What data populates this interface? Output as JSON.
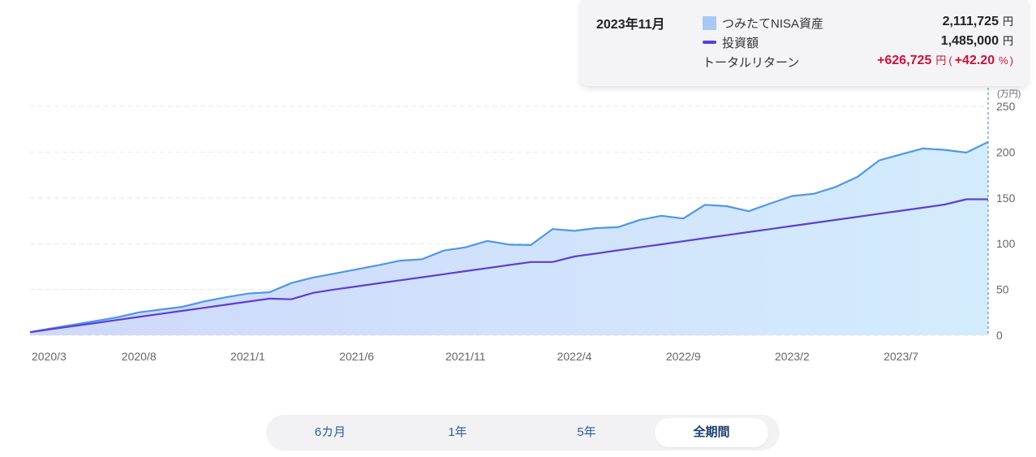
{
  "tooltip": {
    "date": "2023年11月",
    "asset_label": "つみたてNISA資産",
    "asset_value": "2,111,725",
    "invest_label": "投資額",
    "invest_value": "1,485,000",
    "return_label": "トータルリターン",
    "return_value": "+626,725",
    "return_pct": "+42.20",
    "yen": "円",
    "percent": "%",
    "paren_open": "("
  },
  "range_buttons": [
    {
      "label": "6カ月",
      "active": false
    },
    {
      "label": "1年",
      "active": false
    },
    {
      "label": "5年",
      "active": false
    },
    {
      "label": "全期間",
      "active": true
    }
  ],
  "colors": {
    "asset_line": "#4f97e6",
    "asset_fill_start": "#cfd8fb",
    "asset_fill_end": "#d3ecfd",
    "invest_line": "#5b3fd8",
    "return_red": "#d0103a",
    "crosshair": "#3a78c2"
  },
  "chart_data": {
    "type": "area",
    "y_unit": "(万円)",
    "ylim": [
      0,
      250
    ],
    "y_ticks": [
      0,
      50,
      100,
      150,
      200,
      250
    ],
    "x_tick_labels": [
      "2020/3",
      "2020/8",
      "2021/1",
      "2021/6",
      "2021/11",
      "2022/4",
      "2022/9",
      "2023/2",
      "2023/7"
    ],
    "x_tick_index": [
      0,
      5,
      10,
      15,
      20,
      25,
      30,
      35,
      40
    ],
    "x_months": [
      "2020/3",
      "2020/4",
      "2020/5",
      "2020/6",
      "2020/7",
      "2020/8",
      "2020/9",
      "2020/10",
      "2020/11",
      "2020/12",
      "2021/1",
      "2021/2",
      "2021/3",
      "2021/4",
      "2021/5",
      "2021/6",
      "2021/7",
      "2021/8",
      "2021/9",
      "2021/10",
      "2021/11",
      "2021/12",
      "2022/1",
      "2022/2",
      "2022/3",
      "2022/4",
      "2022/5",
      "2022/6",
      "2022/7",
      "2022/8",
      "2022/9",
      "2022/10",
      "2022/11",
      "2022/12",
      "2023/1",
      "2023/2",
      "2023/3",
      "2023/4",
      "2023/5",
      "2023/6",
      "2023/7",
      "2023/8",
      "2023/9",
      "2023/10",
      "2023/11"
    ],
    "grid": true,
    "series": [
      {
        "name": "つみたてNISA資産",
        "values": [
          3.5,
          7.5,
          11.5,
          15.5,
          19.5,
          25,
          28,
          31,
          37,
          41.5,
          45.5,
          47,
          57,
          63,
          67.5,
          72,
          76.5,
          81.5,
          83,
          92.5,
          96,
          103,
          99,
          98.5,
          116,
          114,
          117,
          118,
          126,
          130.5,
          127.5,
          142.5,
          141,
          135.5,
          144,
          152,
          154.5,
          162,
          173,
          191,
          197.5,
          204,
          202.5,
          199.5,
          211.2
        ]
      },
      {
        "name": "投資額",
        "values": [
          3.3,
          6.7,
          10,
          13.3,
          16.7,
          20,
          23.3,
          26.7,
          30,
          33.3,
          36.7,
          40,
          39.3,
          46.3,
          50,
          53.3,
          56.7,
          60,
          63.3,
          66.7,
          70,
          73.3,
          76.7,
          80,
          80,
          86,
          89.3,
          92.7,
          96,
          99.3,
          102.7,
          106,
          109.3,
          112.7,
          116,
          119.3,
          122.7,
          126,
          129.3,
          132.7,
          136,
          139.3,
          142.7,
          148.5,
          148.5
        ]
      }
    ]
  }
}
